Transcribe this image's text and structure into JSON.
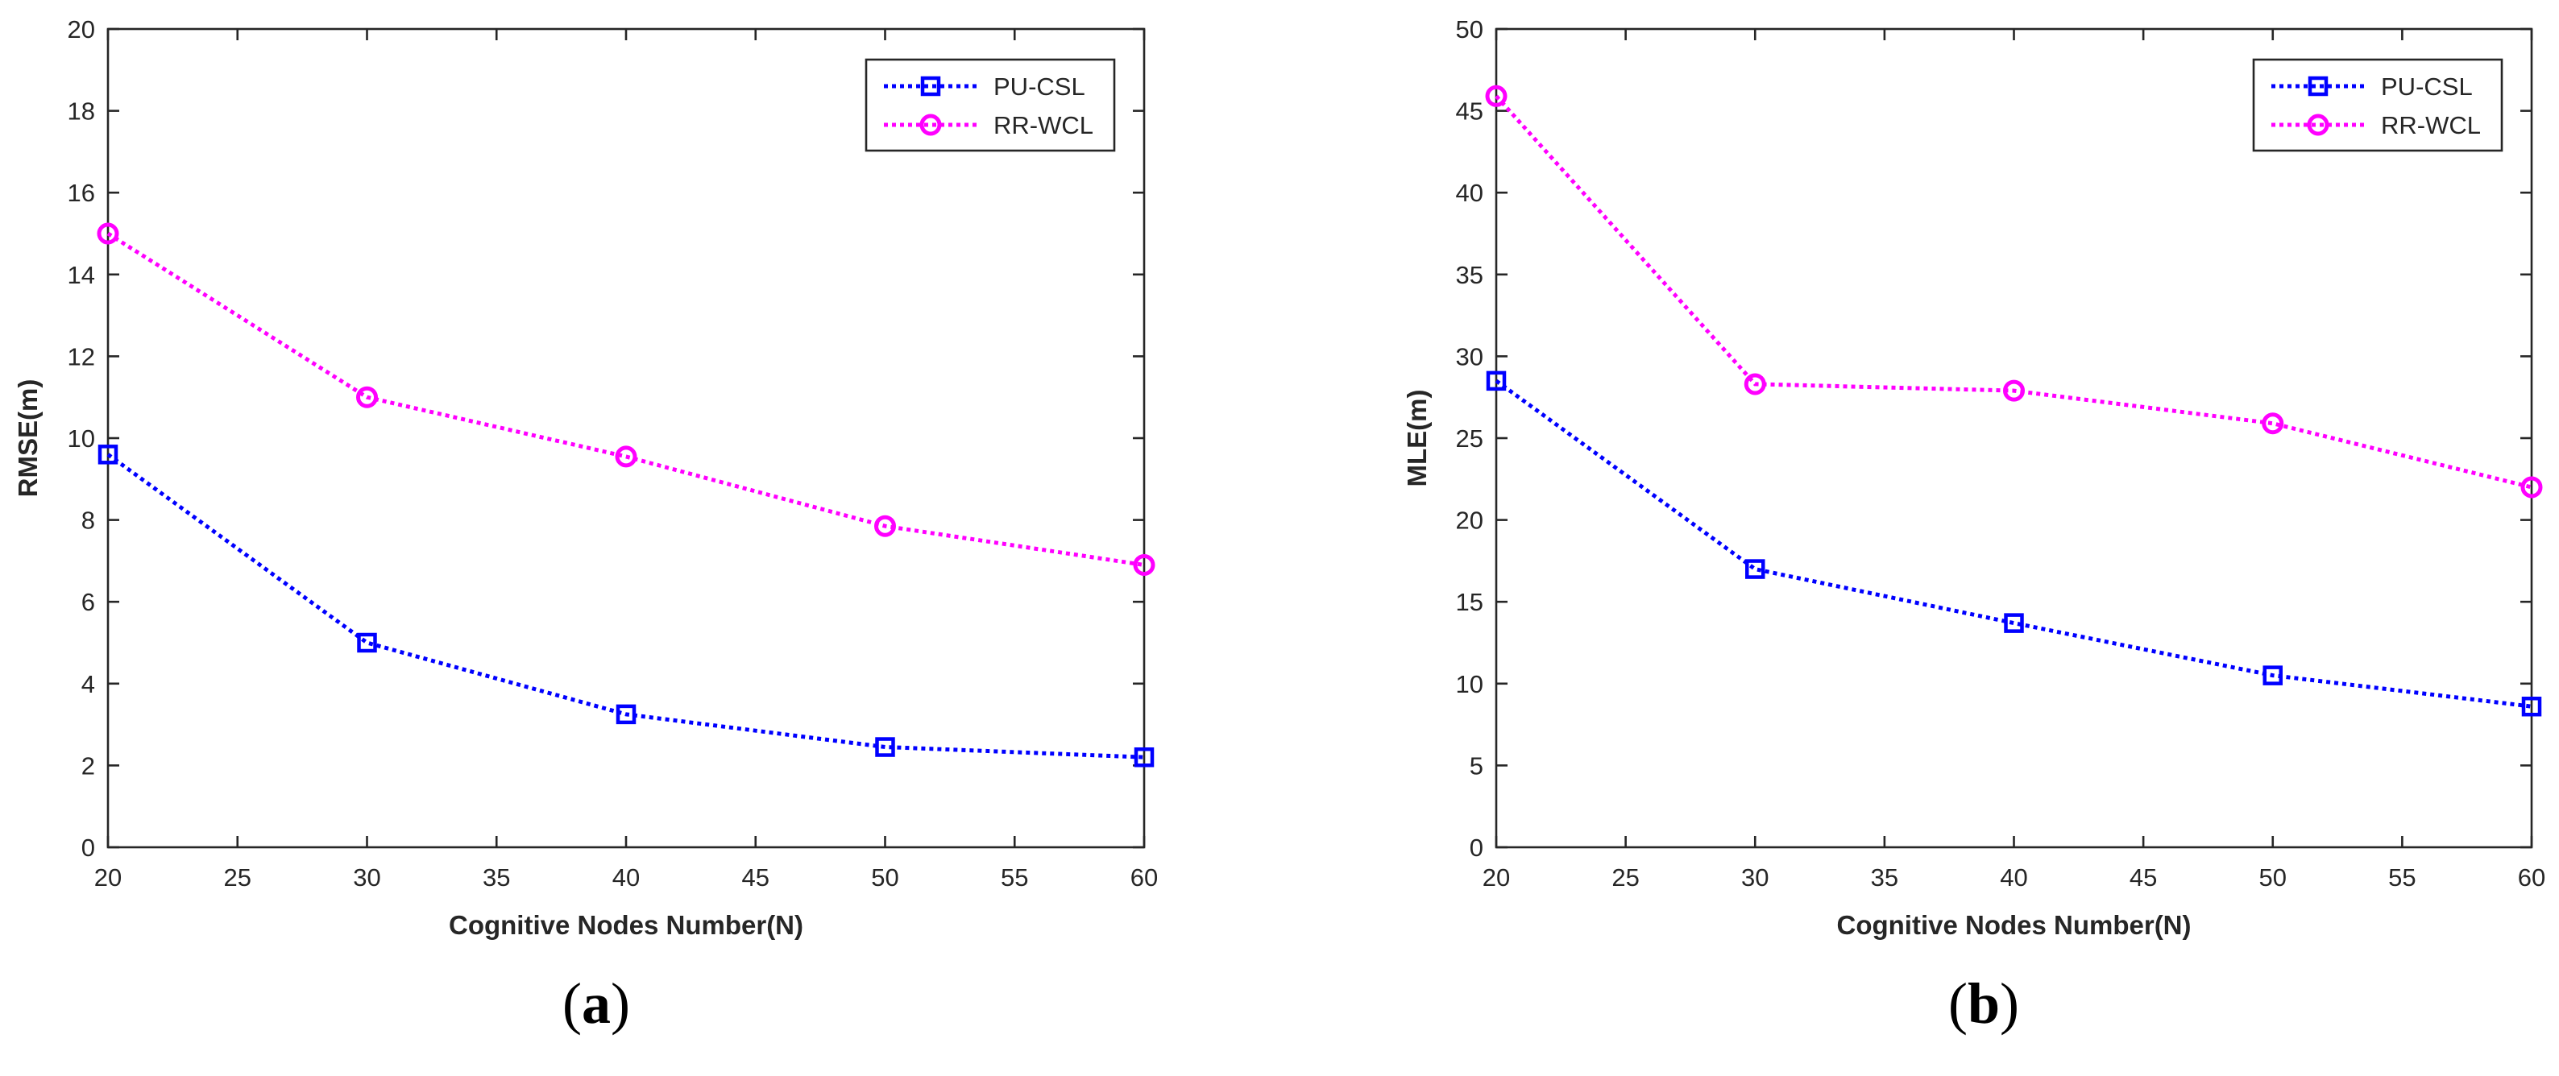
{
  "chart_data": [
    {
      "type": "line",
      "caption_open": "(",
      "caption_letter": "a",
      "caption_close": ")",
      "xlabel": "Cognitive Nodes Number(N)",
      "ylabel": "RMSE(m)",
      "xlim": [
        20,
        60
      ],
      "ylim": [
        0,
        20
      ],
      "xticks": [
        20,
        25,
        30,
        35,
        40,
        45,
        50,
        55,
        60
      ],
      "yticks": [
        0,
        2,
        4,
        6,
        8,
        10,
        12,
        14,
        16,
        18,
        20
      ],
      "legend_position": "top-right",
      "x": [
        20,
        30,
        40,
        50,
        60
      ],
      "series": [
        {
          "name": "PU-CSL",
          "color": "#0000ff",
          "marker": "square",
          "values": [
            9.6,
            5.0,
            3.25,
            2.45,
            2.2
          ]
        },
        {
          "name": "RR-WCL",
          "color": "#ff00ff",
          "marker": "circle",
          "values": [
            15.0,
            11.0,
            9.55,
            7.85,
            6.9
          ]
        }
      ]
    },
    {
      "type": "line",
      "caption_open": "(",
      "caption_letter": "b",
      "caption_close": ")",
      "xlabel": "Cognitive Nodes Number(N)",
      "ylabel": "MLE(m)",
      "xlim": [
        20,
        60
      ],
      "ylim": [
        0,
        50
      ],
      "xticks": [
        20,
        25,
        30,
        35,
        40,
        45,
        50,
        55,
        60
      ],
      "yticks": [
        0,
        5,
        10,
        15,
        20,
        25,
        30,
        35,
        40,
        45,
        50
      ],
      "legend_position": "top-right",
      "x": [
        20,
        30,
        40,
        50,
        60
      ],
      "series": [
        {
          "name": "PU-CSL",
          "color": "#0000ff",
          "marker": "square",
          "values": [
            28.5,
            17.0,
            13.7,
            10.5,
            8.6
          ]
        },
        {
          "name": "RR-WCL",
          "color": "#ff00ff",
          "marker": "circle",
          "values": [
            45.9,
            28.3,
            27.9,
            25.9,
            22.0
          ]
        }
      ]
    }
  ]
}
